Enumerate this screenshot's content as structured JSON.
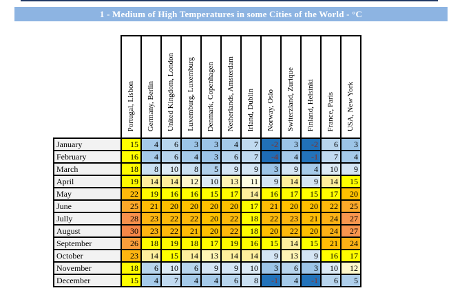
{
  "title": "1 - Medium of High Temperatures in some Cities of the World - °C",
  "colors": {
    "title_bar_bg": "#8DB4E2",
    "title_text": "#FFFFFF",
    "top_rule": "#1F3864",
    "grid_border": "#000000",
    "month_cell_bg": "#F2F2F2",
    "header_cell_bg": "#FFFFFF",
    "value_text": "#000000",
    "negative_value_text": "#8B2E20"
  },
  "chart_data": {
    "type": "heatmap",
    "title": "1 - Medium of High Temperatures in some Cities of the World - °C",
    "unit": "°C",
    "columns": [
      "Portugal, Lisbon",
      "Germany, Berlin",
      "United Kingdom, London",
      "Luxemburg, Luxemburg",
      "Denmark, Copenhagen",
      "Netherlands, Amsterdam",
      "Irland, Dublin",
      "Norway, Oslo",
      "Switerzland, Zurique",
      "Finland, Helsinki",
      "France, Paris",
      "USA, New York"
    ],
    "rows": [
      "January",
      "February",
      "March",
      "April",
      "May",
      "June",
      "Jully",
      "August",
      "September",
      "October",
      "November",
      "December"
    ],
    "values": [
      [
        15,
        4,
        6,
        3,
        3,
        4,
        7,
        -2,
        3,
        -2,
        6,
        3
      ],
      [
        16,
        4,
        6,
        4,
        3,
        6,
        7,
        -4,
        4,
        -1,
        7,
        4
      ],
      [
        18,
        8,
        10,
        8,
        5,
        9,
        9,
        3,
        9,
        4,
        10,
        9
      ],
      [
        19,
        14,
        14,
        12,
        10,
        13,
        11,
        9,
        14,
        9,
        14,
        15
      ],
      [
        22,
        19,
        16,
        16,
        15,
        17,
        14,
        16,
        17,
        15,
        17,
        20
      ],
      [
        25,
        21,
        20,
        20,
        20,
        20,
        17,
        21,
        20,
        20,
        22,
        25
      ],
      [
        28,
        23,
        22,
        22,
        20,
        22,
        18,
        22,
        23,
        21,
        24,
        27
      ],
      [
        30,
        23,
        22,
        21,
        20,
        22,
        18,
        20,
        22,
        20,
        24,
        27
      ],
      [
        26,
        18,
        19,
        18,
        17,
        19,
        16,
        15,
        14,
        15,
        21,
        24
      ],
      [
        23,
        14,
        15,
        14,
        13,
        14,
        14,
        9,
        13,
        9,
        16,
        17
      ],
      [
        18,
        6,
        10,
        6,
        9,
        9,
        10,
        3,
        6,
        3,
        10,
        12
      ],
      [
        15,
        4,
        7,
        4,
        4,
        6,
        8,
        -1,
        4,
        -1,
        6,
        5
      ]
    ],
    "color_scale": [
      {
        "value": -4,
        "color": "#1E6CB5"
      },
      {
        "value": -1,
        "color": "#2373BA"
      },
      {
        "value": 3,
        "color": "#9CC4E7"
      },
      {
        "value": 10,
        "color": "#DDEBF6"
      },
      {
        "value": 11,
        "color": "#FFFDE3"
      },
      {
        "value": 14,
        "color": "#FFEF9C"
      },
      {
        "value": 15,
        "color": "#FFFF00"
      },
      {
        "value": 19,
        "color": "#FFF900"
      },
      {
        "value": 20,
        "color": "#FFC000"
      },
      {
        "value": 24,
        "color": "#FDB116"
      },
      {
        "value": 27,
        "color": "#F9954E"
      },
      {
        "value": 30,
        "color": "#F78747"
      }
    ]
  }
}
